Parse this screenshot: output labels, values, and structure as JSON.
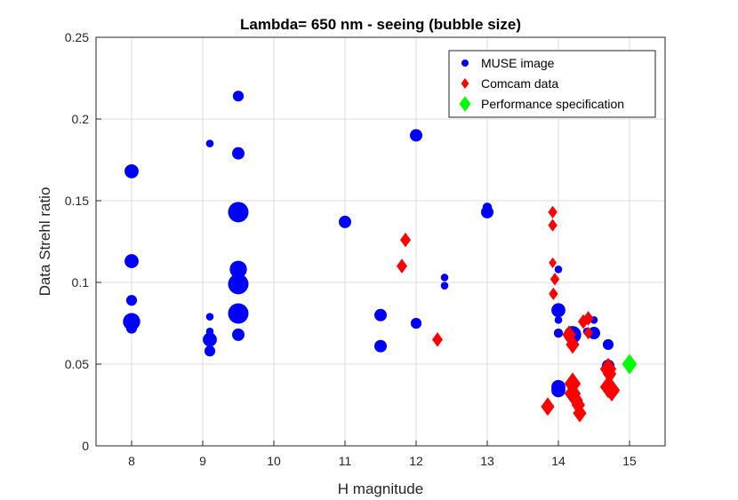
{
  "chart_data": {
    "type": "scatter",
    "title": "Lambda= 650 nm - seeing (bubble size)",
    "xlabel": "H magnitude",
    "ylabel": "Data Strehl ratio",
    "xlim": [
      7.5,
      15.5
    ],
    "ylim": [
      0,
      0.25
    ],
    "xticks": [
      8,
      9,
      10,
      11,
      12,
      13,
      14,
      15
    ],
    "yticks": [
      0,
      0.05,
      0.1,
      0.15,
      0.2,
      0.25
    ],
    "xtick_labels": [
      "8",
      "9",
      "10",
      "11",
      "12",
      "13",
      "14",
      "15"
    ],
    "ytick_labels": [
      "0",
      "0.05",
      "0.1",
      "0.15",
      "0.2",
      "0.25"
    ],
    "grid": true,
    "legend_position": "top-right",
    "size_note": "bubble size = seeing (relative, 1-5)",
    "series": [
      {
        "name": "MUSE image",
        "marker": "circle",
        "color": "#0000ff",
        "points": [
          {
            "x": 8.0,
            "y": 0.168,
            "s": 3
          },
          {
            "x": 8.0,
            "y": 0.113,
            "s": 3
          },
          {
            "x": 8.0,
            "y": 0.089,
            "s": 2
          },
          {
            "x": 8.0,
            "y": 0.076,
            "s": 4
          },
          {
            "x": 8.0,
            "y": 0.072,
            "s": 2
          },
          {
            "x": 9.1,
            "y": 0.185,
            "s": 1
          },
          {
            "x": 9.1,
            "y": 0.079,
            "s": 1
          },
          {
            "x": 9.1,
            "y": 0.07,
            "s": 1
          },
          {
            "x": 9.1,
            "y": 0.065,
            "s": 3
          },
          {
            "x": 9.1,
            "y": 0.058,
            "s": 2
          },
          {
            "x": 9.5,
            "y": 0.214,
            "s": 2
          },
          {
            "x": 9.5,
            "y": 0.179,
            "s": 2.5
          },
          {
            "x": 9.5,
            "y": 0.143,
            "s": 5
          },
          {
            "x": 9.5,
            "y": 0.108,
            "s": 4
          },
          {
            "x": 9.5,
            "y": 0.099,
            "s": 5
          },
          {
            "x": 9.5,
            "y": 0.081,
            "s": 5
          },
          {
            "x": 9.5,
            "y": 0.068,
            "s": 2.5
          },
          {
            "x": 11.0,
            "y": 0.137,
            "s": 2.5
          },
          {
            "x": 11.5,
            "y": 0.08,
            "s": 2.5
          },
          {
            "x": 11.5,
            "y": 0.061,
            "s": 2.5
          },
          {
            "x": 12.0,
            "y": 0.19,
            "s": 2.5
          },
          {
            "x": 12.0,
            "y": 0.075,
            "s": 2
          },
          {
            "x": 12.4,
            "y": 0.103,
            "s": 1
          },
          {
            "x": 12.4,
            "y": 0.098,
            "s": 1
          },
          {
            "x": 13.0,
            "y": 0.146,
            "s": 1.5
          },
          {
            "x": 13.0,
            "y": 0.143,
            "s": 2.5
          },
          {
            "x": 14.0,
            "y": 0.108,
            "s": 1
          },
          {
            "x": 14.0,
            "y": 0.083,
            "s": 3
          },
          {
            "x": 14.0,
            "y": 0.077,
            "s": 1
          },
          {
            "x": 14.0,
            "y": 0.069,
            "s": 1.5
          },
          {
            "x": 14.0,
            "y": 0.036,
            "s": 3
          },
          {
            "x": 14.0,
            "y": 0.034,
            "s": 3
          },
          {
            "x": 14.2,
            "y": 0.068,
            "s": 4
          },
          {
            "x": 14.4,
            "y": 0.07,
            "s": 1
          },
          {
            "x": 14.5,
            "y": 0.077,
            "s": 1
          },
          {
            "x": 14.5,
            "y": 0.069,
            "s": 2.5
          },
          {
            "x": 14.7,
            "y": 0.062,
            "s": 2
          },
          {
            "x": 14.7,
            "y": 0.049,
            "s": 2.5
          }
        ]
      },
      {
        "name": "Comcam data",
        "marker": "diamond",
        "color": "#ff0000",
        "points": [
          {
            "x": 11.8,
            "y": 0.11,
            "s": 2
          },
          {
            "x": 11.85,
            "y": 0.126,
            "s": 2
          },
          {
            "x": 12.3,
            "y": 0.065,
            "s": 2
          },
          {
            "x": 13.85,
            "y": 0.024,
            "s": 3
          },
          {
            "x": 13.92,
            "y": 0.143,
            "s": 1.5
          },
          {
            "x": 13.92,
            "y": 0.135,
            "s": 1.5
          },
          {
            "x": 13.92,
            "y": 0.112,
            "s": 1
          },
          {
            "x": 13.95,
            "y": 0.102,
            "s": 1.5
          },
          {
            "x": 13.93,
            "y": 0.093,
            "s": 1.5
          },
          {
            "x": 14.15,
            "y": 0.068,
            "s": 3
          },
          {
            "x": 14.2,
            "y": 0.062,
            "s": 3
          },
          {
            "x": 14.2,
            "y": 0.038,
            "s": 4
          },
          {
            "x": 14.2,
            "y": 0.032,
            "s": 4
          },
          {
            "x": 14.25,
            "y": 0.028,
            "s": 3
          },
          {
            "x": 14.28,
            "y": 0.025,
            "s": 3
          },
          {
            "x": 14.3,
            "y": 0.02,
            "s": 3
          },
          {
            "x": 14.35,
            "y": 0.076,
            "s": 2
          },
          {
            "x": 14.42,
            "y": 0.078,
            "s": 2
          },
          {
            "x": 14.42,
            "y": 0.069,
            "s": 1.5
          },
          {
            "x": 14.7,
            "y": 0.047,
            "s": 4
          },
          {
            "x": 14.72,
            "y": 0.044,
            "s": 3
          },
          {
            "x": 14.7,
            "y": 0.036,
            "s": 4
          },
          {
            "x": 14.75,
            "y": 0.034,
            "s": 4
          }
        ]
      },
      {
        "name": "Performance specification",
        "marker": "diamond",
        "color": "#00ff00",
        "points": [
          {
            "x": 15.0,
            "y": 0.05,
            "s": 3.5
          }
        ]
      }
    ]
  }
}
